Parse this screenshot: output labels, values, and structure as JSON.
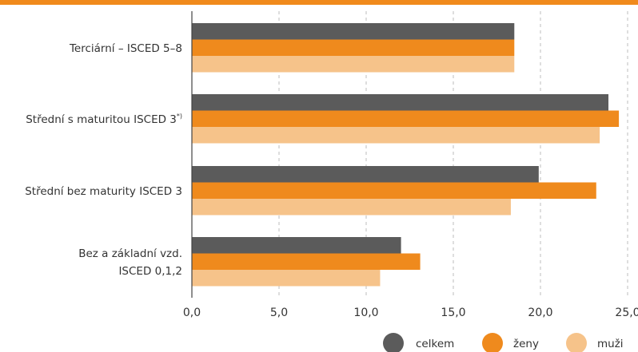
{
  "colors": {
    "accent": "#f08a1c",
    "celkem": "#5b5b5b",
    "zeny": "#ef8a1d",
    "muzi": "#f6c38a",
    "grid": "#bdbdbd",
    "axis": "#444444"
  },
  "chart_data": {
    "type": "bar",
    "orientation": "horizontal",
    "title": "",
    "xlabel": "",
    "ylabel": "",
    "xlim": [
      0,
      25
    ],
    "ticks": [
      "0,0",
      "5,0",
      "10,0",
      "15,0",
      "20,0",
      "25,0"
    ],
    "tick_values": [
      0,
      5,
      10,
      15,
      20,
      25
    ],
    "grid": "vertical-dashed",
    "legend_position": "bottom-right",
    "categories": [
      {
        "lines": [
          "Terciární – ISCED 5–8"
        ],
        "sup": ""
      },
      {
        "lines": [
          "Střední s maturitou ISCED 3"
        ],
        "sup": "*)"
      },
      {
        "lines": [
          "Střední bez maturity ISCED 3"
        ],
        "sup": ""
      },
      {
        "lines": [
          "Bez a základní vzd.",
          "ISCED 0,1,2"
        ],
        "sup": ""
      }
    ],
    "series": [
      {
        "name": "celkem",
        "color_key": "celkem",
        "values": [
          18.5,
          23.9,
          19.9,
          12.0
        ]
      },
      {
        "name": "ženy",
        "color_key": "zeny",
        "values": [
          18.5,
          24.5,
          23.2,
          13.1
        ]
      },
      {
        "name": "muži",
        "color_key": "muzi",
        "values": [
          18.5,
          23.4,
          18.3,
          10.8
        ]
      }
    ]
  }
}
